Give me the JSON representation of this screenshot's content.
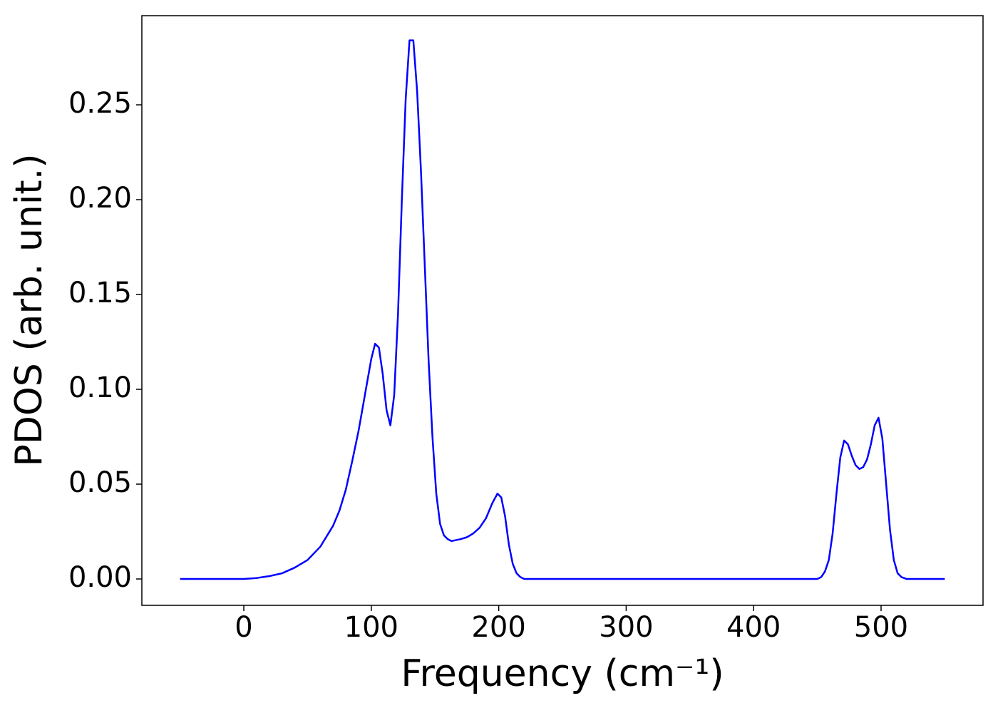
{
  "chart_data": {
    "type": "line",
    "xlabel": "Frequency (cm⁻¹)",
    "ylabel": "PDOS (arb. unit.)",
    "x": [
      -50,
      0,
      10,
      20,
      30,
      40,
      50,
      60,
      70,
      75,
      80,
      85,
      90,
      95,
      100,
      103,
      106,
      109,
      112,
      115,
      118,
      121,
      124,
      127,
      130,
      133,
      136,
      139,
      142,
      145,
      148,
      151,
      154,
      157,
      160,
      163,
      170,
      175,
      180,
      185,
      190,
      195,
      199,
      202,
      205,
      208,
      211,
      214,
      217,
      220,
      450,
      453,
      456,
      459,
      462,
      465,
      468,
      471,
      474,
      477,
      480,
      483,
      486,
      489,
      492,
      495,
      498,
      501,
      504,
      507,
      510,
      513,
      516,
      520,
      550
    ],
    "series": [
      {
        "name": "PDOS",
        "color": "#0000ff",
        "values": [
          0,
          0,
          0.0005,
          0.0015,
          0.003,
          0.006,
          0.01,
          0.017,
          0.028,
          0.036,
          0.047,
          0.062,
          0.078,
          0.097,
          0.116,
          0.124,
          0.122,
          0.108,
          0.089,
          0.081,
          0.097,
          0.14,
          0.2,
          0.253,
          0.284,
          0.284,
          0.257,
          0.215,
          0.165,
          0.115,
          0.075,
          0.045,
          0.029,
          0.023,
          0.021,
          0.02,
          0.021,
          0.022,
          0.024,
          0.027,
          0.032,
          0.04,
          0.045,
          0.043,
          0.033,
          0.018,
          0.008,
          0.003,
          0.001,
          0,
          0,
          0.001,
          0.004,
          0.01,
          0.024,
          0.045,
          0.064,
          0.073,
          0.071,
          0.065,
          0.06,
          0.058,
          0.059,
          0.063,
          0.071,
          0.081,
          0.085,
          0.074,
          0.05,
          0.026,
          0.01,
          0.003,
          0.001,
          0,
          0
        ]
      }
    ],
    "xlim": [
      -80,
      580
    ],
    "ylim": [
      -0.0139,
      0.297
    ],
    "xticks": [
      0,
      100,
      200,
      300,
      400,
      500
    ],
    "yticks": [
      {
        "value": 0,
        "label": "0.00"
      },
      {
        "value": 0.05,
        "label": "0.05"
      },
      {
        "value": 0.1,
        "label": "0.10"
      },
      {
        "value": 0.15,
        "label": "0.15"
      },
      {
        "value": 0.2,
        "label": "0.20"
      },
      {
        "value": 0.25,
        "label": "0.25"
      }
    ]
  }
}
